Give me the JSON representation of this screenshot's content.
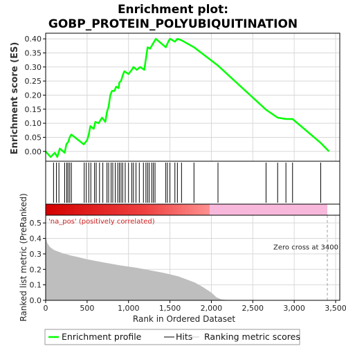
{
  "chart_data": {
    "type": "line",
    "title_line1": "Enrichment plot:",
    "title_line2": "GOBP_PROTEIN_POLYUBIQUITINATION",
    "ylabel_top": "Enrichment score (ES)",
    "ylabel_bottom": "Ranked list metric (PreRanked)",
    "xlabel": "Rank in Ordered Dataset",
    "xlim": [
      0,
      3550
    ],
    "ylim_top": [
      -0.035,
      0.42
    ],
    "ylim_bottom": [
      0,
      0.55
    ],
    "x_ticks": [
      "0",
      "500",
      "1,000",
      "1,500",
      "2,000",
      "2,500",
      "3,000",
      "3,500"
    ],
    "x_tick_values": [
      0,
      500,
      1000,
      1500,
      2000,
      2500,
      3000,
      3500
    ],
    "y_ticks_top": [
      "0.00",
      "0.05",
      "0.10",
      "0.15",
      "0.20",
      "0.25",
      "0.30",
      "0.35",
      "0.40"
    ],
    "y_tick_values_top": [
      0,
      0.05,
      0.1,
      0.15,
      0.2,
      0.25,
      0.3,
      0.35,
      0.4
    ],
    "y_ticks_bottom": [
      "0.0",
      "0.1",
      "0.2",
      "0.3",
      "0.4",
      "0.5"
    ],
    "y_tick_values_bottom": [
      0,
      0.1,
      0.2,
      0.3,
      0.4,
      0.5
    ],
    "grid": true,
    "colors": {
      "es_line": "#00ff00",
      "hits": "#000000",
      "metric_fill": "#bebebe",
      "zero_cross": "#a0a0a0",
      "pos_annotation": "#d02020",
      "bar_pos_dark": "#d40000",
      "bar_pos_light": "#ff9090",
      "bar_neg": "#f8b8dc"
    },
    "es_points": [
      [
        0,
        0.0
      ],
      [
        60,
        -0.02
      ],
      [
        110,
        -0.005
      ],
      [
        140,
        -0.02
      ],
      [
        170,
        0.01
      ],
      [
        230,
        -0.005
      ],
      [
        250,
        0.025
      ],
      [
        275,
        0.035
      ],
      [
        290,
        0.05
      ],
      [
        310,
        0.06
      ],
      [
        460,
        0.025
      ],
      [
        500,
        0.04
      ],
      [
        520,
        0.06
      ],
      [
        540,
        0.09
      ],
      [
        580,
        0.08
      ],
      [
        600,
        0.105
      ],
      [
        640,
        0.1
      ],
      [
        680,
        0.12
      ],
      [
        720,
        0.105
      ],
      [
        740,
        0.14
      ],
      [
        760,
        0.16
      ],
      [
        780,
        0.2
      ],
      [
        800,
        0.215
      ],
      [
        830,
        0.215
      ],
      [
        850,
        0.23
      ],
      [
        880,
        0.225
      ],
      [
        890,
        0.245
      ],
      [
        910,
        0.25
      ],
      [
        930,
        0.27
      ],
      [
        950,
        0.285
      ],
      [
        1000,
        0.275
      ],
      [
        1040,
        0.29
      ],
      [
        1060,
        0.3
      ],
      [
        1100,
        0.29
      ],
      [
        1140,
        0.3
      ],
      [
        1190,
        0.29
      ],
      [
        1230,
        0.37
      ],
      [
        1260,
        0.365
      ],
      [
        1290,
        0.38
      ],
      [
        1310,
        0.39
      ],
      [
        1330,
        0.4
      ],
      [
        1450,
        0.37
      ],
      [
        1480,
        0.39
      ],
      [
        1500,
        0.4
      ],
      [
        1560,
        0.39
      ],
      [
        1590,
        0.4
      ],
      [
        1640,
        0.395
      ],
      [
        1790,
        0.37
      ],
      [
        2080,
        0.305
      ],
      [
        2660,
        0.148
      ],
      [
        2800,
        0.12
      ],
      [
        2900,
        0.115
      ],
      [
        2980,
        0.115
      ],
      [
        3320,
        0.03
      ],
      [
        3420,
        0.0
      ]
    ],
    "hits": [
      95,
      130,
      160,
      230,
      255,
      270,
      290,
      310,
      465,
      490,
      520,
      545,
      590,
      610,
      650,
      690,
      740,
      760,
      790,
      810,
      840,
      870,
      890,
      910,
      930,
      960,
      1000,
      1040,
      1060,
      1090,
      1130,
      1180,
      1210,
      1230,
      1250,
      1280,
      1300,
      1320,
      1450,
      1470,
      1500,
      1560,
      1590,
      1640,
      1790,
      2080,
      2660,
      2800,
      2900,
      2980,
      3320
    ],
    "metric_points": [
      [
        0,
        0.41
      ],
      [
        20,
        0.37
      ],
      [
        50,
        0.345
      ],
      [
        100,
        0.325
      ],
      [
        200,
        0.305
      ],
      [
        300,
        0.29
      ],
      [
        400,
        0.278
      ],
      [
        500,
        0.265
      ],
      [
        600,
        0.255
      ],
      [
        700,
        0.245
      ],
      [
        800,
        0.235
      ],
      [
        900,
        0.226
      ],
      [
        1000,
        0.218
      ],
      [
        1100,
        0.21
      ],
      [
        1200,
        0.2
      ],
      [
        1300,
        0.19
      ],
      [
        1400,
        0.18
      ],
      [
        1500,
        0.168
      ],
      [
        1600,
        0.155
      ],
      [
        1700,
        0.135
      ],
      [
        1800,
        0.115
      ],
      [
        1900,
        0.085
      ],
      [
        2000,
        0.05
      ],
      [
        2060,
        0.02
      ],
      [
        2120,
        0.006
      ],
      [
        2200,
        0.002
      ],
      [
        3400,
        0.0
      ]
    ],
    "bar_split": 1800,
    "bar_pos_end": 1980,
    "zero_cross_x": 3400,
    "annotation_pos": "'na_pos' (positively correlated)",
    "annotation_zero": "Zero cross at 3400",
    "legend": [
      "Enrichment profile",
      "Hits",
      "Ranking metric scores"
    ]
  }
}
